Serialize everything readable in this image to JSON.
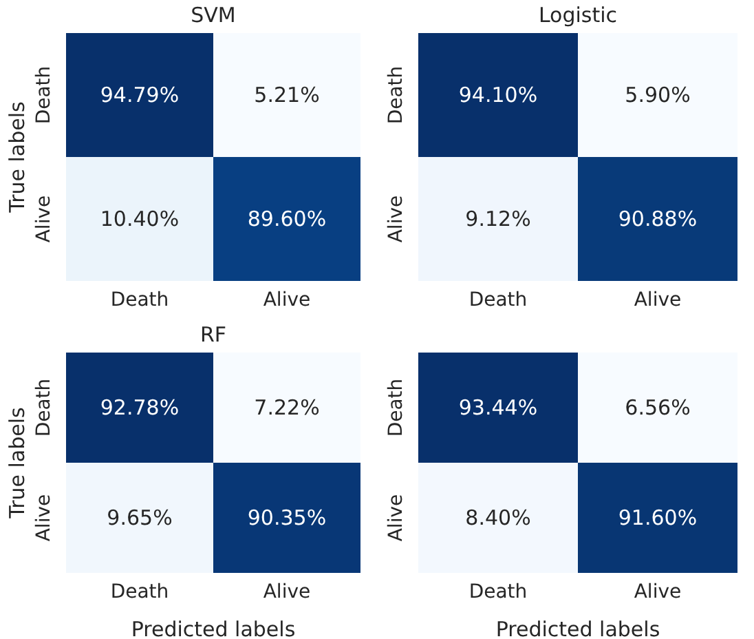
{
  "chart_data": [
    {
      "type": "heatmap",
      "title": "SVM",
      "ylabel": "True labels",
      "categories": [
        "Death",
        "Alive"
      ],
      "y_categories": [
        "Death",
        "Alive"
      ],
      "cells": [
        [
          94.79,
          5.21
        ],
        [
          10.4,
          89.6
        ]
      ],
      "cell_labels": [
        [
          "94.79%",
          "5.21%"
        ],
        [
          "10.40%",
          "89.60%"
        ]
      ]
    },
    {
      "type": "heatmap",
      "title": "Logistic",
      "categories": [
        "Death",
        "Alive"
      ],
      "y_categories": [
        "Death",
        "Alive"
      ],
      "cells": [
        [
          94.1,
          5.9
        ],
        [
          9.12,
          90.88
        ]
      ],
      "cell_labels": [
        [
          "94.10%",
          "5.90%"
        ],
        [
          "9.12%",
          "90.88%"
        ]
      ]
    },
    {
      "type": "heatmap",
      "title": "RF",
      "xlabel": "Predicted labels",
      "ylabel": "True labels",
      "categories": [
        "Death",
        "Alive"
      ],
      "y_categories": [
        "Death",
        "Alive"
      ],
      "cells": [
        [
          92.78,
          7.22
        ],
        [
          9.65,
          90.35
        ]
      ],
      "cell_labels": [
        [
          "92.78%",
          "7.22%"
        ],
        [
          "9.65%",
          "90.35%"
        ]
      ]
    },
    {
      "type": "heatmap",
      "xlabel": "Predicted labels",
      "categories": [
        "Death",
        "Alive"
      ],
      "y_categories": [
        "Death",
        "Alive"
      ],
      "cells": [
        [
          93.44,
          6.56
        ],
        [
          8.4,
          91.6
        ]
      ],
      "cell_labels": [
        [
          "93.44%",
          "6.56%"
        ],
        [
          "8.40%",
          "91.60%"
        ]
      ]
    }
  ]
}
